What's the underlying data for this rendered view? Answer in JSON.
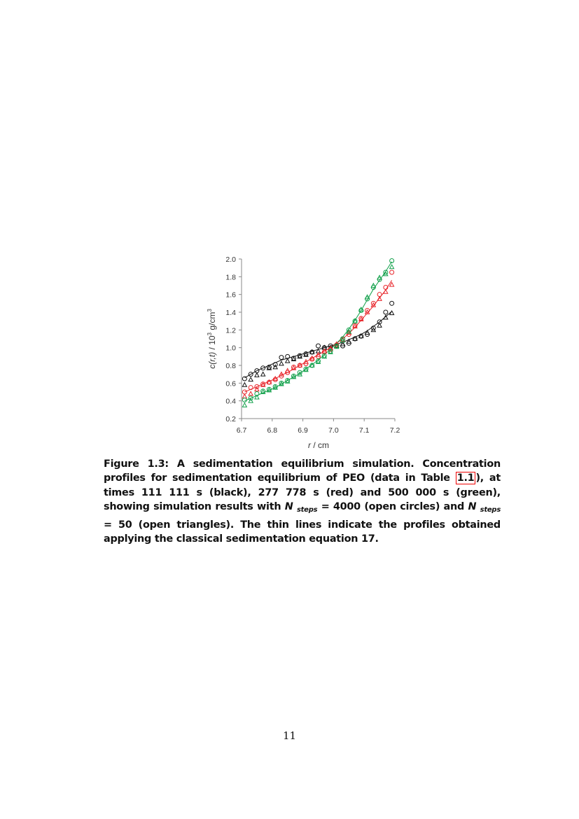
{
  "chart_data": {
    "type": "scatter",
    "xlabel_var": "r",
    "xlabel_unit": " / cm",
    "ylabel": {
      "var": "c(r,t)",
      "mid": "  / 10",
      "sup": "3",
      "unit": " g/cm",
      "sup2": "3"
    },
    "xlim": [
      6.7,
      7.2
    ],
    "ylim": [
      0.2,
      2.0
    ],
    "xticks": [
      "6.7",
      "6.8",
      "6.9",
      "7.0",
      "7.1",
      "7.2"
    ],
    "yticks": [
      "0.2",
      "0.4",
      "0.6",
      "0.8",
      "1.0",
      "1.2",
      "1.4",
      "1.6",
      "1.8",
      "2.0"
    ],
    "grid": false,
    "colors": {
      "black": "#111111",
      "red": "#e8262b",
      "green": "#11a04a"
    },
    "x": [
      6.71,
      6.73,
      6.75,
      6.77,
      6.79,
      6.81,
      6.83,
      6.85,
      6.87,
      6.89,
      6.91,
      6.93,
      6.95,
      6.97,
      6.99,
      7.01,
      7.03,
      7.05,
      7.07,
      7.09,
      7.11,
      7.13,
      7.15,
      7.17,
      7.19
    ],
    "series": [
      {
        "color": "black",
        "marker": "circle",
        "values": [
          0.65,
          0.7,
          0.74,
          0.77,
          0.78,
          0.81,
          0.89,
          0.9,
          0.88,
          0.91,
          0.93,
          0.95,
          1.02,
          1.0,
          1.02,
          1.03,
          1.02,
          1.05,
          1.1,
          1.13,
          1.15,
          1.22,
          1.29,
          1.4,
          1.5
        ]
      },
      {
        "color": "black",
        "marker": "triangle",
        "values": [
          0.58,
          0.64,
          0.69,
          0.7,
          0.77,
          0.78,
          0.82,
          0.85,
          0.87,
          0.9,
          0.92,
          0.95,
          0.96,
          1.0,
          1.0,
          1.02,
          1.04,
          1.07,
          1.1,
          1.13,
          1.17,
          1.2,
          1.25,
          1.34,
          1.39
        ]
      },
      {
        "color": "red",
        "marker": "circle",
        "values": [
          0.5,
          0.55,
          0.56,
          0.59,
          0.61,
          0.64,
          0.68,
          0.72,
          0.78,
          0.8,
          0.82,
          0.87,
          0.9,
          0.95,
          0.98,
          1.03,
          1.1,
          1.15,
          1.25,
          1.33,
          1.42,
          1.5,
          1.6,
          1.68,
          1.85
        ]
      },
      {
        "color": "red",
        "marker": "triangle",
        "values": [
          0.45,
          0.48,
          0.53,
          0.58,
          0.61,
          0.65,
          0.7,
          0.74,
          0.77,
          0.8,
          0.84,
          0.88,
          0.92,
          0.96,
          0.99,
          1.04,
          1.09,
          1.17,
          1.24,
          1.32,
          1.4,
          1.48,
          1.55,
          1.63,
          1.71
        ]
      },
      {
        "color": "green",
        "marker": "circle",
        "values": [
          0.41,
          0.43,
          0.48,
          0.51,
          0.53,
          0.56,
          0.6,
          0.63,
          0.68,
          0.72,
          0.76,
          0.8,
          0.85,
          0.91,
          0.96,
          1.02,
          1.1,
          1.2,
          1.3,
          1.42,
          1.55,
          1.68,
          1.77,
          1.85,
          1.98
        ]
      },
      {
        "color": "green",
        "marker": "triangle",
        "values": [
          0.35,
          0.4,
          0.44,
          0.5,
          0.52,
          0.55,
          0.59,
          0.62,
          0.67,
          0.7,
          0.75,
          0.8,
          0.84,
          0.9,
          0.95,
          1.01,
          1.08,
          1.18,
          1.3,
          1.43,
          1.57,
          1.7,
          1.79,
          1.83,
          1.91
        ]
      }
    ],
    "lines": [
      {
        "color": "black",
        "values": [
          0.66,
          0.7,
          0.74,
          0.77,
          0.8,
          0.83,
          0.86,
          0.88,
          0.9,
          0.92,
          0.94,
          0.96,
          0.98,
          1.0,
          1.02,
          1.04,
          1.06,
          1.09,
          1.12,
          1.15,
          1.19,
          1.24,
          1.29,
          1.35,
          1.41
        ]
      },
      {
        "color": "red",
        "values": [
          0.5,
          0.53,
          0.56,
          0.59,
          0.62,
          0.65,
          0.69,
          0.72,
          0.76,
          0.8,
          0.84,
          0.88,
          0.92,
          0.96,
          1.0,
          1.05,
          1.1,
          1.16,
          1.23,
          1.31,
          1.39,
          1.47,
          1.56,
          1.65,
          1.76
        ]
      },
      {
        "color": "green",
        "values": [
          0.4,
          0.43,
          0.46,
          0.49,
          0.52,
          0.55,
          0.59,
          0.63,
          0.67,
          0.71,
          0.76,
          0.81,
          0.86,
          0.92,
          0.98,
          1.05,
          1.12,
          1.21,
          1.31,
          1.42,
          1.54,
          1.66,
          1.76,
          1.86,
          1.97
        ]
      }
    ]
  },
  "caption": {
    "p1": "Figure 1.3: A sedimentation equilibrium simulation. Concentration profiles for sedimentation equilibrium of PEO (data in Table ",
    "ref": "1.1",
    "p2": "), at times 111 111 s (black), 277 778 s (red) and 500 000 s (green), showing simulation results with ",
    "n1": "N",
    "sub1": "steps",
    "p3": " = 4000 (open circles) and ",
    "n2": "N",
    "sub2": "steps",
    "p4": " = 50 (open triangles).  The thin lines indicate the profiles obtained applying the classical sedimentation equation 17."
  },
  "page_number": "11"
}
